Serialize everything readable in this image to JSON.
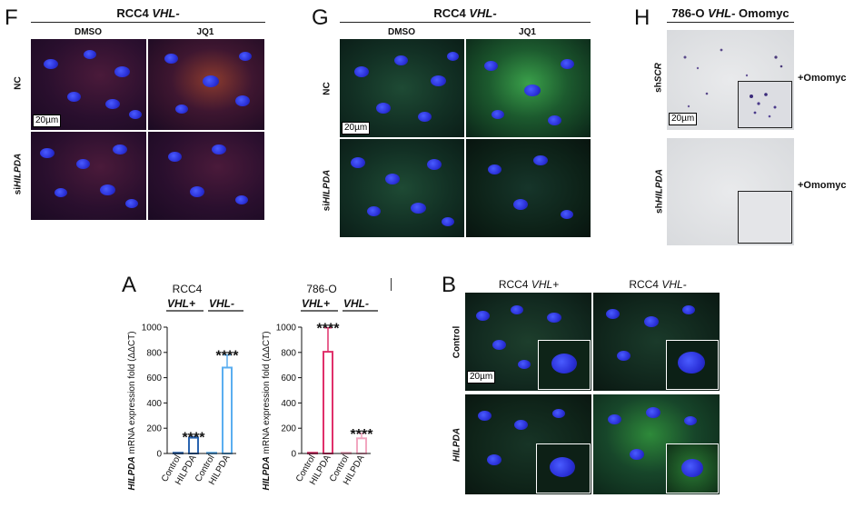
{
  "panels": {
    "F": {
      "letter": "F",
      "title_prefix": "RCC4 ",
      "title_italic": "VHL-",
      "columns": [
        "DMSO",
        "JQ1"
      ],
      "row_nc": "NC",
      "row_si_prefix": "si",
      "row_si_italic": "HILPDA",
      "scale": "20µm"
    },
    "G": {
      "letter": "G",
      "title_prefix": "RCC4 ",
      "title_italic": "VHL-",
      "columns": [
        "DMSO",
        "JQ1"
      ],
      "row_nc": "NC",
      "row_si_prefix": "si",
      "row_si_italic": "HILPDA",
      "scale": "20µm"
    },
    "H": {
      "letter": "H",
      "title_prefix": "786-O ",
      "title_italic": "VHL-",
      "title_suffix": " Omomyc",
      "row1_prefix": "sh",
      "row1_italic": "SCR",
      "row2_prefix": "sh",
      "row2_italic": "HILPDA",
      "side_label": "+Omomyc",
      "scale": "20µm"
    },
    "A": {
      "letter": "A",
      "ylabel_italic": "HILPDA",
      "ylabel_rest": " mRNA expression fold (ΔΔCT)",
      "left_title": "RCC4",
      "right_title": "786-O",
      "group_plus": "VHL+",
      "group_minus": "VHL-",
      "significance": "****"
    },
    "B": {
      "letter": "B",
      "col1_prefix": "RCC4 ",
      "col1_italic": "VHL+",
      "col2_prefix": "RCC4 ",
      "col2_italic": "VHL-",
      "row1": "Control",
      "row2": "HILPDA",
      "scale": "20µm"
    }
  },
  "chart_data": [
    {
      "type": "bar",
      "title": "RCC4",
      "ylabel": "HILPDA mRNA expression fold (ΔΔCT)",
      "categories": [
        "Control",
        "HILPDA",
        "Control",
        "HILPDA"
      ],
      "groups": [
        "VHL+",
        "VHL+",
        "VHL-",
        "VHL-"
      ],
      "values": [
        1,
        125,
        1,
        680
      ],
      "errors": [
        0,
        8,
        0,
        100
      ],
      "colors": [
        "#2a64b0",
        "#2a64b0",
        "#5aaef0",
        "#5aaef0"
      ],
      "significance": [
        "",
        "****",
        "",
        "****"
      ],
      "ylim": [
        0,
        1000
      ],
      "yticks": [
        0,
        200,
        400,
        600,
        800,
        1000
      ]
    },
    {
      "type": "bar",
      "title": "786-O",
      "ylabel": "HILPDA mRNA expression fold (ΔΔCT)",
      "categories": [
        "Control",
        "HILPDA",
        "Control",
        "HILPDA"
      ],
      "groups": [
        "VHL+",
        "VHL+",
        "VHL-",
        "VHL-"
      ],
      "values": [
        1,
        805,
        1,
        120
      ],
      "errors": [
        0,
        190,
        0,
        40
      ],
      "colors": [
        "#e0306a",
        "#e0306a",
        "#f2a6c0",
        "#f2a6c0"
      ],
      "significance": [
        "",
        "****",
        "",
        "****"
      ],
      "ylim": [
        0,
        1000
      ],
      "yticks": [
        0,
        200,
        400,
        600,
        800,
        1000
      ]
    }
  ]
}
